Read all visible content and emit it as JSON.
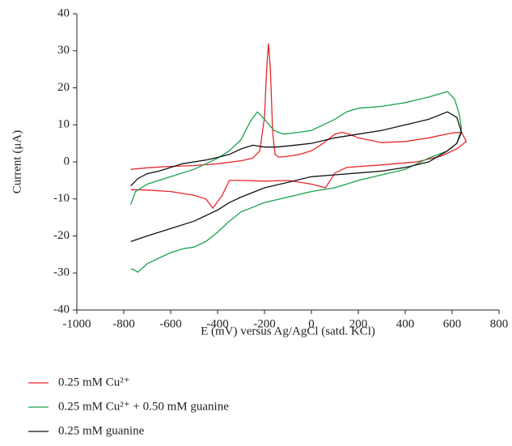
{
  "chart_data": {
    "type": "line",
    "xlabel": "E (mV) versus Ag/AgCl (satd. KCl)",
    "ylabel": "Current (μA)",
    "xlim": [
      -1000,
      800
    ],
    "xticks": [
      -1000,
      -800,
      -600,
      -400,
      -200,
      0,
      200,
      400,
      600,
      800
    ],
    "ylim": [
      -40,
      40
    ],
    "yticks": [
      -40,
      -30,
      -20,
      -10,
      0,
      10,
      20,
      30,
      40
    ],
    "grid": false,
    "series": [
      {
        "name": "0.25 mM Cu²⁺",
        "color": "#e8262b",
        "x": [
          -770,
          -700,
          -600,
          -500,
          -400,
          -300,
          -250,
          -220,
          -200,
          -190,
          -183,
          -175,
          -165,
          -155,
          -140,
          -100,
          -50,
          0,
          50,
          100,
          130,
          160,
          200,
          300,
          400,
          500,
          600,
          640,
          660,
          620,
          550,
          450,
          300,
          150,
          100,
          60,
          0,
          -100,
          -200,
          -300,
          -350,
          -380,
          -420,
          -450,
          -500,
          -600,
          -700,
          -770
        ],
        "values": [
          -2,
          -1.6,
          -1.2,
          -1,
          -0.5,
          0.3,
          1,
          3,
          12,
          26,
          32,
          25,
          8,
          2,
          1.3,
          1.5,
          2,
          3,
          5,
          7.5,
          8,
          7.5,
          6.5,
          5.2,
          5.5,
          6.5,
          7.8,
          8,
          5.5,
          3.5,
          1.5,
          0,
          -0.8,
          -1.5,
          -3,
          -7,
          -6,
          -5,
          -5.2,
          -5,
          -5,
          -9,
          -12.5,
          -10,
          -9,
          -8,
          -7.6,
          -7.5
        ]
      },
      {
        "name": "0.25 mM Cu²⁺ + 0.50 mM guanine",
        "color": "#1aa34a",
        "x": [
          -770,
          -750,
          -700,
          -600,
          -500,
          -400,
          -350,
          -300,
          -260,
          -230,
          -200,
          -160,
          -120,
          -50,
          0,
          50,
          100,
          150,
          200,
          300,
          400,
          500,
          580,
          610,
          630,
          640,
          620,
          580,
          500,
          400,
          300,
          200,
          100,
          0,
          -100,
          -200,
          -300,
          -350,
          -400,
          -450,
          -500,
          -550,
          -600,
          -650,
          -700,
          -740,
          -760,
          -770
        ],
        "values": [
          -11.5,
          -8,
          -6,
          -4,
          -2,
          1,
          3,
          6,
          11,
          13.5,
          11.5,
          8.5,
          7.5,
          8,
          8.5,
          10,
          11.5,
          13.5,
          14.5,
          15,
          16,
          17.5,
          19,
          17,
          13,
          9,
          5,
          3,
          1,
          -2,
          -3.5,
          -5,
          -7,
          -8,
          -9.5,
          -11,
          -13.5,
          -16,
          -19,
          -21.5,
          -23,
          -23.5,
          -24.5,
          -26,
          -27.5,
          -29.8,
          -29,
          -29
        ]
      },
      {
        "name": "0.25 mM guanine",
        "color": "#111111",
        "x": [
          -770,
          -740,
          -700,
          -650,
          -600,
          -550,
          -500,
          -450,
          -400,
          -350,
          -300,
          -250,
          -200,
          -150,
          -100,
          0,
          100,
          200,
          300,
          400,
          500,
          580,
          620,
          640,
          620,
          580,
          500,
          400,
          300,
          200,
          100,
          0,
          -100,
          -200,
          -300,
          -350,
          -400,
          -500,
          -600,
          -700,
          -770
        ],
        "values": [
          -6.5,
          -4.5,
          -3.2,
          -2.5,
          -1.5,
          -0.5,
          0,
          0.5,
          1.2,
          2,
          3.5,
          4.5,
          4,
          4,
          4.3,
          5,
          6.5,
          7.5,
          8.5,
          10,
          11.5,
          13.5,
          12,
          8,
          5,
          3,
          0,
          -1.5,
          -2.5,
          -3,
          -3.5,
          -4,
          -5.5,
          -7,
          -9.5,
          -11,
          -13,
          -16,
          -18,
          -20,
          -21.5
        ]
      }
    ]
  }
}
